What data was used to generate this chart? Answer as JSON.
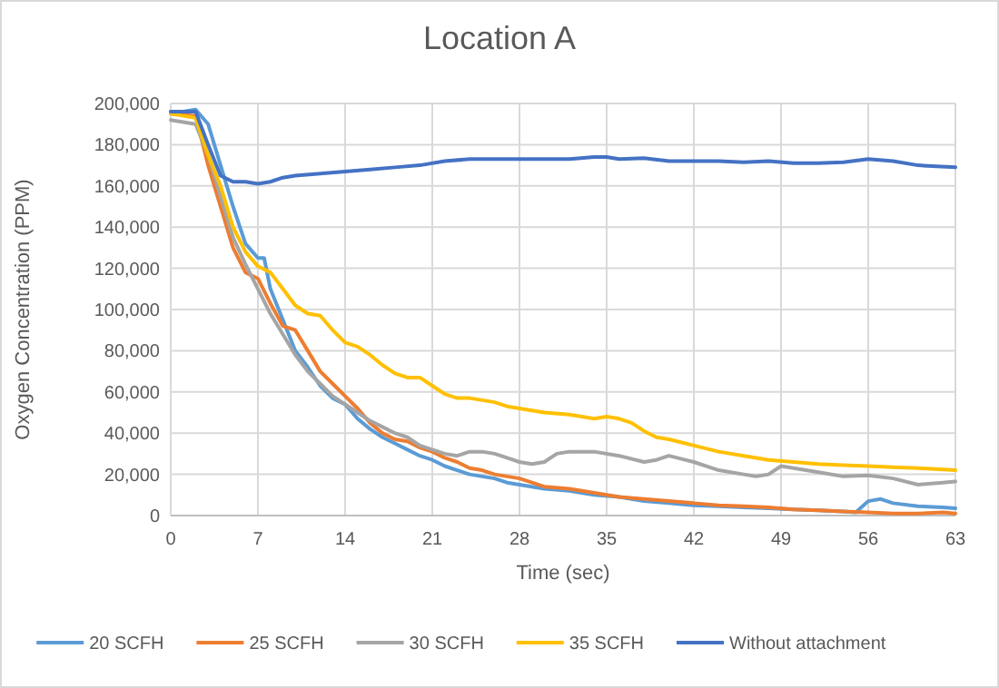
{
  "chart_data": {
    "type": "line",
    "title": "Location A",
    "xlabel": "Time (sec)",
    "ylabel": "Oxygen Concentration (PPM)",
    "xlim": [
      0,
      63
    ],
    "xticks": [
      0,
      7,
      14,
      21,
      28,
      35,
      42,
      49,
      56,
      63
    ],
    "ylim": [
      0,
      200000
    ],
    "yticks": [
      {
        "value": 0,
        "label": "0"
      },
      {
        "value": 20000,
        "label": "20,000"
      },
      {
        "value": 40000,
        "label": "40,000"
      },
      {
        "value": 60000,
        "label": "60,000"
      },
      {
        "value": 80000,
        "label": "80,000"
      },
      {
        "value": 100000,
        "label": "100,000"
      },
      {
        "value": 120000,
        "label": "120,000"
      },
      {
        "value": 140000,
        "label": "140,000"
      },
      {
        "value": 160000,
        "label": "160,000"
      },
      {
        "value": 180000,
        "label": "180,000"
      },
      {
        "value": 200000,
        "label": "200,000"
      }
    ],
    "grid": true,
    "legend": "bottom",
    "line_style": "solid",
    "series": [
      {
        "name": "20 SCFH",
        "color": "#5b9bd5",
        "x": [
          0,
          1,
          2,
          3,
          4,
          5,
          6,
          7,
          7.5,
          8,
          9,
          10,
          11,
          12,
          13,
          14,
          15,
          16,
          17,
          18,
          19,
          20,
          21,
          22,
          23,
          24,
          25,
          26,
          27,
          28,
          29,
          30,
          32,
          34,
          36,
          38,
          40,
          42,
          44,
          46,
          48,
          50,
          52,
          54,
          55,
          56,
          57,
          58,
          60,
          62,
          63
        ],
        "values": [
          196000,
          196000,
          197000,
          190000,
          170000,
          150000,
          132000,
          125000,
          125000,
          110000,
          95000,
          80000,
          72000,
          63000,
          57000,
          54000,
          47000,
          42000,
          38000,
          35000,
          32000,
          29000,
          27000,
          24000,
          22000,
          20000,
          19000,
          18000,
          16000,
          15000,
          14000,
          13000,
          12000,
          10000,
          9000,
          7000,
          6000,
          5000,
          4500,
          4000,
          3500,
          3000,
          2500,
          2000,
          1500,
          7000,
          8000,
          6000,
          4500,
          4000,
          3500
        ]
      },
      {
        "name": "25 SCFH",
        "color": "#ed7d31",
        "x": [
          0,
          2,
          3,
          4,
          5,
          6,
          7,
          8,
          9,
          10,
          11,
          12,
          13,
          14,
          15,
          16,
          17,
          18,
          19,
          20,
          21,
          22,
          23,
          24,
          25,
          26,
          27,
          28,
          29,
          30,
          32,
          34,
          36,
          38,
          40,
          42,
          44,
          46,
          48,
          50,
          52,
          54,
          56,
          58,
          60,
          62,
          63
        ],
        "values": [
          195000,
          194000,
          170000,
          150000,
          130000,
          118000,
          115000,
          103000,
          92000,
          90000,
          80000,
          70000,
          64000,
          58000,
          52000,
          45000,
          40000,
          37000,
          36000,
          33000,
          31000,
          28000,
          26000,
          23000,
          22000,
          20000,
          19000,
          18000,
          16000,
          14000,
          13000,
          11000,
          9000,
          8000,
          7000,
          6000,
          5000,
          4500,
          4000,
          3000,
          2500,
          2000,
          1500,
          1000,
          1000,
          1500,
          1000
        ]
      },
      {
        "name": "30 SCFH",
        "color": "#a5a5a5",
        "x": [
          0,
          2,
          3,
          4,
          5,
          6,
          7,
          8,
          9,
          10,
          11,
          12,
          13,
          14,
          15,
          16,
          17,
          18,
          19,
          20,
          21,
          22,
          23,
          24,
          25,
          26,
          27,
          28,
          29,
          30,
          31,
          32,
          34,
          36,
          38,
          39,
          40,
          42,
          44,
          46,
          47,
          48,
          49,
          50,
          52,
          54,
          56,
          58,
          60,
          62,
          63
        ],
        "values": [
          192000,
          190000,
          175000,
          155000,
          135000,
          122000,
          110000,
          98000,
          88000,
          78000,
          70000,
          64000,
          58000,
          54000,
          50000,
          46000,
          43000,
          40000,
          38000,
          34000,
          32000,
          30000,
          29000,
          31000,
          31000,
          30000,
          28000,
          26000,
          25000,
          26000,
          30000,
          31000,
          31000,
          29000,
          26000,
          27000,
          29000,
          26000,
          22000,
          20000,
          19000,
          20000,
          24000,
          23000,
          21000,
          19000,
          19500,
          18000,
          15000,
          16000,
          16500
        ]
      },
      {
        "name": "35 SCFH",
        "color": "#ffc000",
        "x": [
          0,
          2,
          3,
          4,
          5,
          6,
          7,
          8,
          9,
          10,
          11,
          12,
          13,
          14,
          15,
          16,
          17,
          18,
          19,
          20,
          21,
          22,
          23,
          24,
          25,
          26,
          27,
          28,
          29,
          30,
          32,
          34,
          35,
          36,
          37,
          38,
          39,
          40,
          42,
          44,
          46,
          48,
          50,
          52,
          54,
          56,
          58,
          60,
          63
        ],
        "values": [
          195000,
          193000,
          175000,
          160000,
          140000,
          128000,
          121000,
          118000,
          110000,
          102000,
          98000,
          97000,
          90000,
          84000,
          82000,
          78000,
          73000,
          69000,
          67000,
          67000,
          63000,
          59000,
          57000,
          57000,
          56000,
          55000,
          53000,
          52000,
          51000,
          50000,
          49000,
          47000,
          48000,
          47000,
          45000,
          41000,
          38000,
          37000,
          34000,
          31000,
          29000,
          27000,
          26000,
          25000,
          24500,
          24000,
          23500,
          23000,
          22000
        ]
      },
      {
        "name": "Without attachment",
        "color": "#4472c4",
        "x": [
          0,
          2,
          3,
          4,
          5,
          6,
          7,
          8,
          9,
          10,
          12,
          14,
          16,
          18,
          20,
          22,
          24,
          26,
          28,
          30,
          32,
          34,
          35,
          36,
          38,
          40,
          42,
          44,
          46,
          48,
          50,
          52,
          54,
          56,
          58,
          60,
          63
        ],
        "values": [
          196000,
          196000,
          180000,
          165000,
          162000,
          162000,
          161000,
          162000,
          164000,
          165000,
          166000,
          167000,
          168000,
          169000,
          170000,
          172000,
          173000,
          173000,
          173000,
          173000,
          173000,
          174000,
          174000,
          173000,
          173500,
          172000,
          172000,
          172000,
          171500,
          172000,
          171000,
          171000,
          171500,
          173000,
          172000,
          170000,
          169000
        ]
      }
    ]
  }
}
